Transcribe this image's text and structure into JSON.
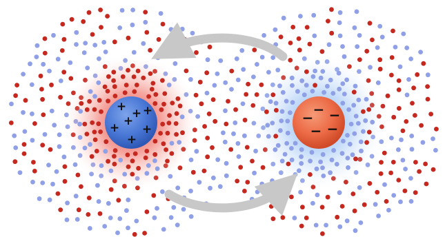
{
  "colors": {
    "background": "#ffffff",
    "cation_ion_color": "#8fa0e6",
    "anion_ion_color": "#c5281f",
    "positive_sphere": "#4a78d6",
    "negative_sphere": "#ec6a45",
    "positive_halo": "#e53c36",
    "negative_halo": "#6ea6ef",
    "arrow": "#c8c8c8"
  },
  "diagram": {
    "positive_particle": {
      "charge_symbols": [
        "+",
        "+",
        "+",
        "+",
        "+",
        "+",
        "+"
      ]
    },
    "negative_particle": {
      "charge_symbols": [
        "−",
        "−",
        "−",
        "−",
        "−"
      ]
    },
    "arrows": [
      "curved-arrow-top-to-left",
      "curved-arrow-bottom-to-right"
    ]
  }
}
